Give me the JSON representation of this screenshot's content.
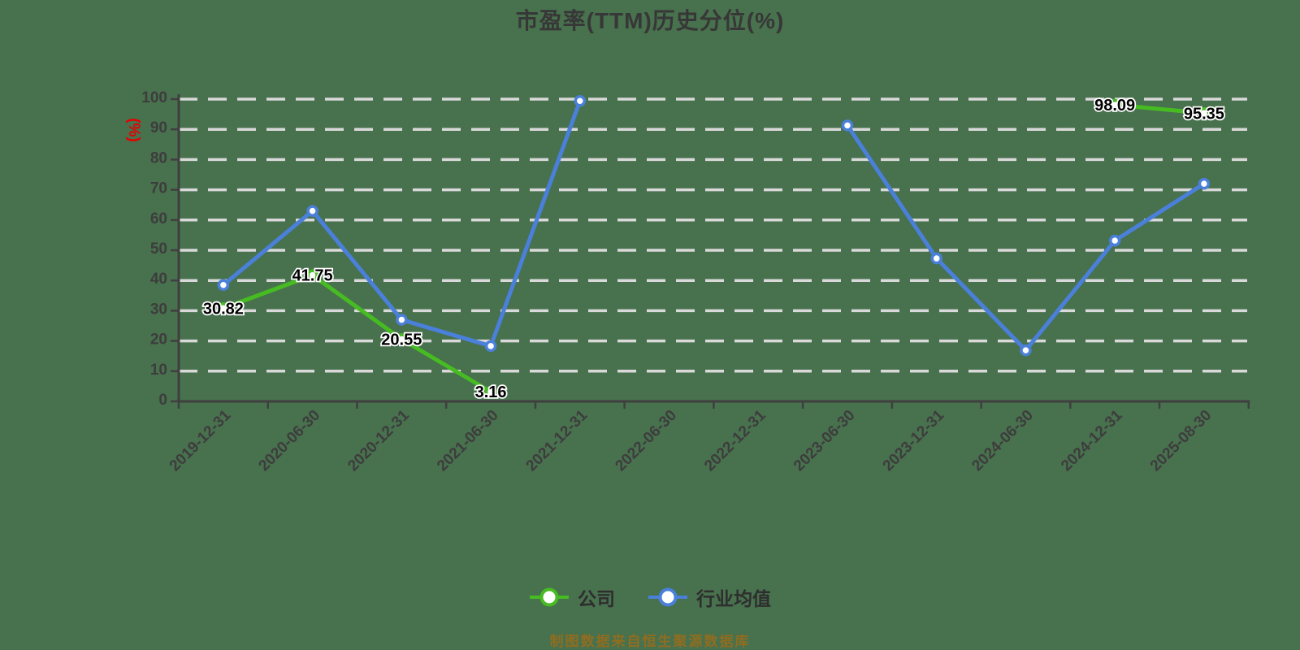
{
  "title": {
    "text": "市盈率(TTM)历史分位(%)"
  },
  "y_axis": {
    "name": "(%)",
    "ticks": [
      0,
      10,
      20,
      30,
      40,
      50,
      60,
      70,
      80,
      90,
      100
    ]
  },
  "legend": {
    "items": [
      {
        "label": "公司"
      },
      {
        "label": "行业均值"
      }
    ]
  },
  "footer": {
    "text": "制图数据来自恒生聚源数据库"
  },
  "colors": {
    "background": "#48714e",
    "company_green": "#46bb22",
    "industry_blue": "#4a80d9",
    "grid": "#d9d9d9",
    "axis": "#3f3f3f",
    "tick_text": "#3d3d3d",
    "data_label": "#000000",
    "y_axis_name_red": "#e60000",
    "footer_gold": "#8f6d20"
  },
  "chart_data": {
    "type": "line",
    "title": "市盈率(TTM)历史分位(%)",
    "ylabel": "(%)",
    "ylim": [
      0,
      100
    ],
    "y_tick_step": 10,
    "grid": true,
    "grid_style": "dashed",
    "legend_position": "bottom",
    "categories": [
      "2019-12-31",
      "2020-06-30",
      "2020-12-31",
      "2021-06-30",
      "2021-12-31",
      "2022-06-30",
      "2022-12-31",
      "2023-06-30",
      "2023-12-31",
      "2024-06-30",
      "2024-12-31",
      "2025-08-30"
    ],
    "series": [
      {
        "name": "公司",
        "color": "#46bb22",
        "show_point_labels": true,
        "values": [
          30.82,
          41.75,
          20.55,
          3.16,
          null,
          null,
          null,
          null,
          null,
          null,
          98.09,
          95.35
        ]
      },
      {
        "name": "行业均值",
        "color": "#4a80d9",
        "show_point_labels": false,
        "values": [
          38.5,
          63.0,
          27.0,
          18.3,
          99.4,
          null,
          null,
          91.3,
          47.3,
          16.9,
          53.2,
          72.0
        ]
      }
    ]
  }
}
